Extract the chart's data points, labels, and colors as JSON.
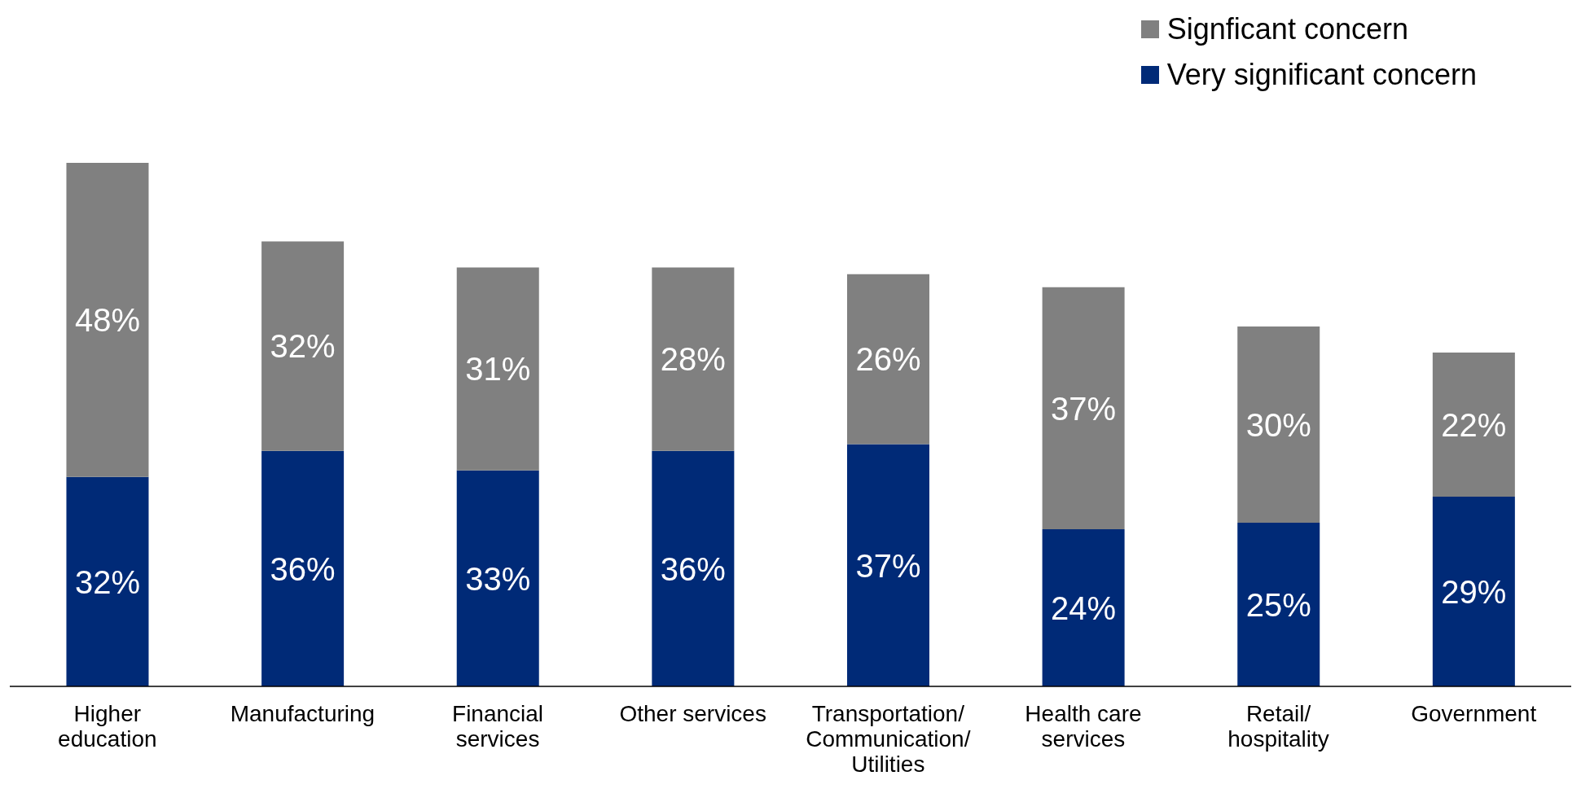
{
  "chart_data": {
    "type": "bar",
    "stacked": true,
    "legend": "top right",
    "grid": false,
    "categories": [
      "Higher\neducation",
      "Manufacturing",
      "Financial\nservices",
      "Other services",
      "Transportation/\nCommunication/\nUtilities",
      "Health care\nservices",
      "Retail/\nhospitality",
      "Government"
    ],
    "series": [
      {
        "name": "Very significant concern",
        "color": "#002a77",
        "values": [
          32,
          36,
          33,
          36,
          37,
          24,
          25,
          29
        ],
        "value_labels": [
          "32%",
          "36%",
          "33%",
          "36%",
          "37%",
          "24%",
          "25%",
          "29%"
        ]
      },
      {
        "name": "Signficant concern",
        "color": "#808080",
        "values": [
          48,
          32,
          31,
          28,
          26,
          37,
          30,
          22
        ],
        "value_labels": [
          "48%",
          "32%",
          "31%",
          "28%",
          "26%",
          "37%",
          "30%",
          "22%"
        ]
      }
    ]
  }
}
